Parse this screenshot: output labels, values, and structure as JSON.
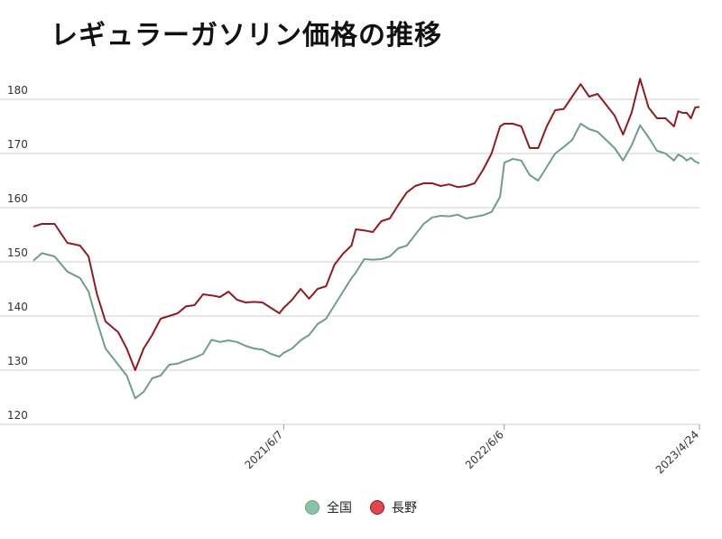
{
  "chart_data": {
    "type": "line",
    "title": "レギュラーガソリン価格の推移",
    "xlabel": "",
    "ylabel": "",
    "ylim": [
      120,
      180
    ],
    "yticks": [
      120,
      130,
      140,
      150,
      160,
      170,
      180
    ],
    "x_range": [
      "2020-04-20",
      "2023-04-24"
    ],
    "xticks": [
      "2021/6/7",
      "2022/6/6",
      "2023/4/24"
    ],
    "grid": true,
    "legend_position": "bottom",
    "series": [
      {
        "name": "全国",
        "color": "#6f9e85",
        "fill": "#8cc3a6",
        "points": [
          [
            "2020-04-20",
            150.2
          ],
          [
            "2020-05-04",
            151.6
          ],
          [
            "2020-05-25",
            151.0
          ],
          [
            "2020-06-15",
            148.2
          ],
          [
            "2020-07-06",
            147.0
          ],
          [
            "2020-07-20",
            144.5
          ],
          [
            "2020-08-03",
            139.0
          ],
          [
            "2020-08-17",
            134.0
          ],
          [
            "2020-09-07",
            131.0
          ],
          [
            "2020-09-21",
            129.0
          ],
          [
            "2020-10-05",
            124.8
          ],
          [
            "2020-10-19",
            126.0
          ],
          [
            "2020-11-02",
            128.5
          ],
          [
            "2020-11-16",
            129.0
          ],
          [
            "2020-11-30",
            131.0
          ],
          [
            "2020-12-14",
            131.2
          ],
          [
            "2020-12-28",
            131.8
          ],
          [
            "2021-01-11",
            132.3
          ],
          [
            "2021-01-25",
            133.0
          ],
          [
            "2021-02-08",
            135.6
          ],
          [
            "2021-02-22",
            135.2
          ],
          [
            "2021-03-08",
            135.5
          ],
          [
            "2021-03-22",
            135.2
          ],
          [
            "2021-04-05",
            134.5
          ],
          [
            "2021-04-19",
            134.0
          ],
          [
            "2021-05-03",
            133.8
          ],
          [
            "2021-05-17",
            133.0
          ],
          [
            "2021-05-31",
            132.5
          ],
          [
            "2021-06-07",
            133.2
          ],
          [
            "2021-06-21",
            134.0
          ],
          [
            "2021-07-05",
            135.5
          ],
          [
            "2021-07-19",
            136.5
          ],
          [
            "2021-08-02",
            138.5
          ],
          [
            "2021-08-16",
            139.5
          ],
          [
            "2021-08-30",
            142.0
          ],
          [
            "2021-09-13",
            144.5
          ],
          [
            "2021-09-27",
            147.0
          ],
          [
            "2021-10-04",
            148.0
          ],
          [
            "2021-10-18",
            150.5
          ],
          [
            "2021-11-01",
            150.4
          ],
          [
            "2021-11-15",
            150.5
          ],
          [
            "2021-11-29",
            151.0
          ],
          [
            "2021-12-13",
            152.5
          ],
          [
            "2021-12-27",
            153.0
          ],
          [
            "2022-01-10",
            155.0
          ],
          [
            "2022-01-24",
            157.0
          ],
          [
            "2022-02-07",
            158.2
          ],
          [
            "2022-02-21",
            158.5
          ],
          [
            "2022-03-07",
            158.4
          ],
          [
            "2022-03-21",
            158.7
          ],
          [
            "2022-04-04",
            158.0
          ],
          [
            "2022-04-18",
            158.3
          ],
          [
            "2022-05-02",
            158.6
          ],
          [
            "2022-05-16",
            159.2
          ],
          [
            "2022-05-30",
            162.0
          ],
          [
            "2022-06-06",
            168.3
          ],
          [
            "2022-06-20",
            169.0
          ],
          [
            "2022-07-04",
            168.7
          ],
          [
            "2022-07-18",
            166.0
          ],
          [
            "2022-08-01",
            165.0
          ],
          [
            "2022-08-15",
            167.5
          ],
          [
            "2022-08-29",
            170.0
          ],
          [
            "2022-09-12",
            171.2
          ],
          [
            "2022-09-26",
            172.5
          ],
          [
            "2022-10-10",
            175.5
          ],
          [
            "2022-10-24",
            174.5
          ],
          [
            "2022-11-07",
            174.0
          ],
          [
            "2022-11-21",
            172.5
          ],
          [
            "2022-12-05",
            171.0
          ],
          [
            "2022-12-19",
            168.7
          ],
          [
            "2023-01-02",
            171.5
          ],
          [
            "2023-01-16",
            175.2
          ],
          [
            "2023-01-30",
            173.0
          ],
          [
            "2023-02-13",
            170.5
          ],
          [
            "2023-02-27",
            170.0
          ],
          [
            "2023-03-13",
            168.7
          ],
          [
            "2023-03-20",
            169.8
          ],
          [
            "2023-03-27",
            169.4
          ],
          [
            "2023-04-03",
            168.7
          ],
          [
            "2023-04-10",
            169.2
          ],
          [
            "2023-04-17",
            168.5
          ],
          [
            "2023-04-24",
            168.2
          ]
        ]
      },
      {
        "name": "長野",
        "color": "#8e1c22",
        "fill": "#e0474f",
        "points": [
          [
            "2020-04-20",
            156.5
          ],
          [
            "2020-05-04",
            157.0
          ],
          [
            "2020-05-25",
            157.0
          ],
          [
            "2020-06-15",
            153.5
          ],
          [
            "2020-07-06",
            153.0
          ],
          [
            "2020-07-20",
            151.0
          ],
          [
            "2020-08-03",
            144.0
          ],
          [
            "2020-08-17",
            139.0
          ],
          [
            "2020-09-07",
            137.0
          ],
          [
            "2020-09-21",
            134.0
          ],
          [
            "2020-10-05",
            130.0
          ],
          [
            "2020-10-19",
            134.0
          ],
          [
            "2020-11-02",
            136.5
          ],
          [
            "2020-11-16",
            139.5
          ],
          [
            "2020-11-30",
            140.0
          ],
          [
            "2020-12-14",
            140.5
          ],
          [
            "2020-12-28",
            141.8
          ],
          [
            "2021-01-11",
            142.0
          ],
          [
            "2021-01-25",
            144.0
          ],
          [
            "2021-02-08",
            143.8
          ],
          [
            "2021-02-22",
            143.5
          ],
          [
            "2021-03-08",
            144.5
          ],
          [
            "2021-03-22",
            143.0
          ],
          [
            "2021-04-05",
            142.5
          ],
          [
            "2021-04-19",
            142.6
          ],
          [
            "2021-05-03",
            142.5
          ],
          [
            "2021-05-17",
            141.5
          ],
          [
            "2021-05-31",
            140.5
          ],
          [
            "2021-06-07",
            141.5
          ],
          [
            "2021-06-21",
            143.0
          ],
          [
            "2021-07-05",
            145.0
          ],
          [
            "2021-07-19",
            143.2
          ],
          [
            "2021-08-02",
            145.0
          ],
          [
            "2021-08-16",
            145.5
          ],
          [
            "2021-08-30",
            149.5
          ],
          [
            "2021-09-13",
            151.5
          ],
          [
            "2021-09-27",
            153.0
          ],
          [
            "2021-10-04",
            156.0
          ],
          [
            "2021-10-18",
            155.8
          ],
          [
            "2021-11-01",
            155.5
          ],
          [
            "2021-11-15",
            157.5
          ],
          [
            "2021-11-29",
            158.0
          ],
          [
            "2021-12-13",
            160.5
          ],
          [
            "2021-12-27",
            162.8
          ],
          [
            "2022-01-10",
            164.0
          ],
          [
            "2022-01-24",
            164.5
          ],
          [
            "2022-02-07",
            164.5
          ],
          [
            "2022-02-21",
            164.0
          ],
          [
            "2022-03-07",
            164.3
          ],
          [
            "2022-03-21",
            163.8
          ],
          [
            "2022-04-04",
            164.0
          ],
          [
            "2022-04-18",
            164.5
          ],
          [
            "2022-05-02",
            167.0
          ],
          [
            "2022-05-16",
            170.0
          ],
          [
            "2022-05-30",
            175.0
          ],
          [
            "2022-06-06",
            175.5
          ],
          [
            "2022-06-20",
            175.5
          ],
          [
            "2022-07-04",
            175.0
          ],
          [
            "2022-07-18",
            171.0
          ],
          [
            "2022-08-01",
            171.0
          ],
          [
            "2022-08-15",
            175.0
          ],
          [
            "2022-08-29",
            178.0
          ],
          [
            "2022-09-12",
            178.2
          ],
          [
            "2022-09-26",
            180.5
          ],
          [
            "2022-10-10",
            182.8
          ],
          [
            "2022-10-24",
            180.5
          ],
          [
            "2022-11-07",
            181.0
          ],
          [
            "2022-11-21",
            179.0
          ],
          [
            "2022-12-05",
            177.0
          ],
          [
            "2022-12-19",
            173.5
          ],
          [
            "2023-01-02",
            177.5
          ],
          [
            "2023-01-16",
            183.8
          ],
          [
            "2023-01-30",
            178.5
          ],
          [
            "2023-02-13",
            176.5
          ],
          [
            "2023-02-27",
            176.5
          ],
          [
            "2023-03-13",
            175.0
          ],
          [
            "2023-03-20",
            177.8
          ],
          [
            "2023-03-27",
            177.5
          ],
          [
            "2023-04-03",
            177.5
          ],
          [
            "2023-04-10",
            176.5
          ],
          [
            "2023-04-17",
            178.5
          ],
          [
            "2023-04-24",
            178.6
          ]
        ]
      }
    ]
  }
}
